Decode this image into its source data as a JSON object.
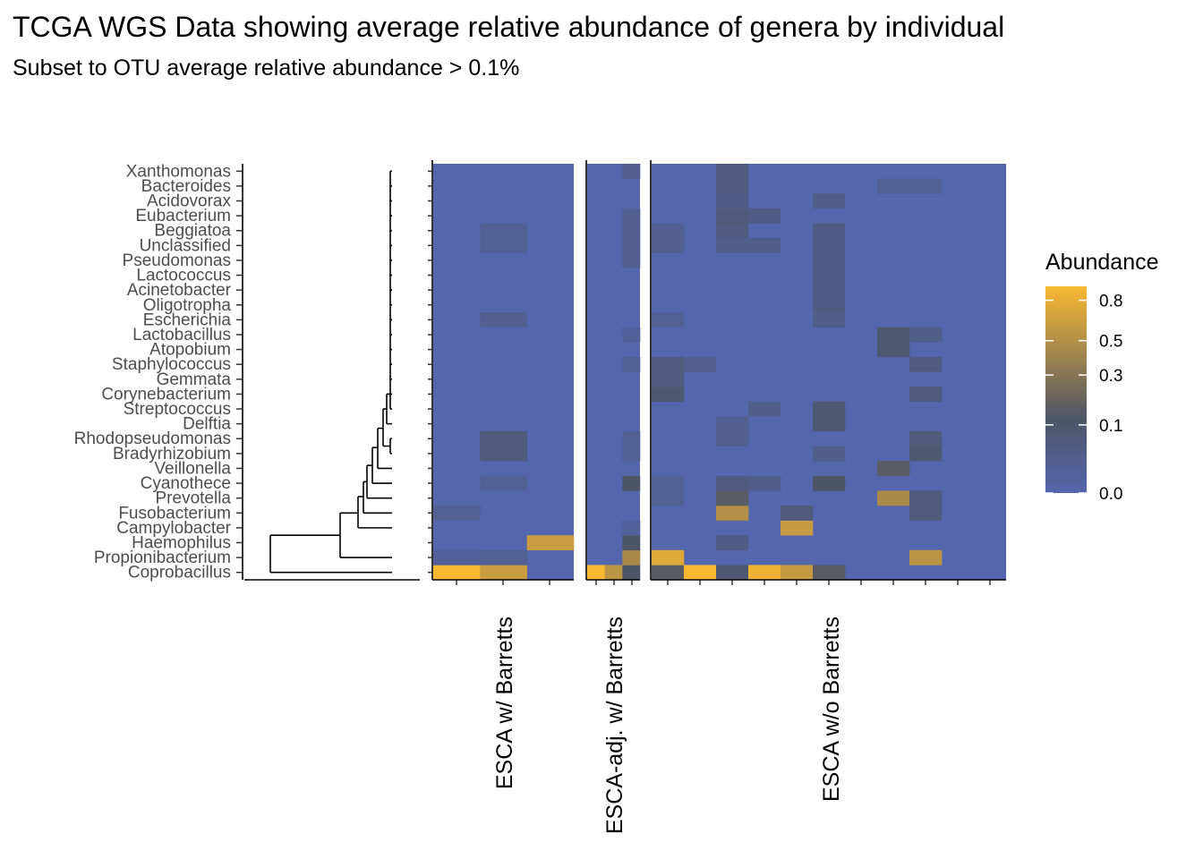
{
  "chart_data": {
    "type": "heatmap",
    "title": "TCGA WGS Data showing average relative abundance of genera by individual",
    "subtitle": "Subset to OTU average relative abundance > 0.1%",
    "genera": [
      "Xanthomonas",
      "Bacteroides",
      "Acidovorax",
      "Eubacterium",
      "Beggiatoa",
      "Unclassified",
      "Pseudomonas",
      "Lactococcus",
      "Acinetobacter",
      "Oligotropha",
      "Escherichia",
      "Lactobacillus",
      "Atopobium",
      "Staphylococcus",
      "Gemmata",
      "Corynebacterium",
      "Streptococcus",
      "Delftia",
      "Rhodopseudomonas",
      "Bradyrhizobium",
      "Veillonella",
      "Cyanothece",
      "Prevotella",
      "Fusobacterium",
      "Campylobacter",
      "Haemophilus",
      "Propionibacterium",
      "Coprobacillus"
    ],
    "facets": [
      {
        "label": "ESCA w/ Barretts",
        "n": 3,
        "cells": [
          {
            "genus": "Coprobacillus",
            "col": 0,
            "value": 0.92
          },
          {
            "genus": "Coprobacillus",
            "col": 1,
            "value": 0.62
          },
          {
            "genus": "Haemophilus",
            "col": 2,
            "value": 0.62
          },
          {
            "genus": "Bradyrhizobium",
            "col": 1,
            "value": 0.06
          },
          {
            "genus": "Rhodopseudomonas",
            "col": 1,
            "value": 0.06
          },
          {
            "genus": "Escherichia",
            "col": 1,
            "value": 0.02
          },
          {
            "genus": "Beggiatoa",
            "col": 1,
            "value": 0.015
          },
          {
            "genus": "Unclassified",
            "col": 1,
            "value": 0.015
          },
          {
            "genus": "Cyanothece",
            "col": 1,
            "value": 0.015
          },
          {
            "genus": "Propionibacterium",
            "col": 1,
            "value": 0.015
          },
          {
            "genus": "Fusobacterium",
            "col": 0,
            "value": 0.015
          },
          {
            "genus": "Propionibacterium",
            "col": 0,
            "value": 0.01
          }
        ]
      },
      {
        "label": "ESCA-adj. w/ Barretts",
        "n": 3,
        "cells": [
          {
            "genus": "Coprobacillus",
            "col": 0,
            "value": 0.92
          },
          {
            "genus": "Coprobacillus",
            "col": 1,
            "value": 0.55
          },
          {
            "genus": "Coprobacillus",
            "col": 2,
            "value": 0.12
          },
          {
            "genus": "Propionibacterium",
            "col": 2,
            "value": 0.45
          },
          {
            "genus": "Haemophilus",
            "col": 2,
            "value": 0.12
          },
          {
            "genus": "Cyanothece",
            "col": 2,
            "value": 0.12
          },
          {
            "genus": "Xanthomonas",
            "col": 2,
            "value": 0.02
          },
          {
            "genus": "Eubacterium",
            "col": 2,
            "value": 0.02
          },
          {
            "genus": "Beggiatoa",
            "col": 2,
            "value": 0.02
          },
          {
            "genus": "Unclassified",
            "col": 2,
            "value": 0.02
          },
          {
            "genus": "Pseudomonas",
            "col": 2,
            "value": 0.02
          },
          {
            "genus": "Staphylococcus",
            "col": 2,
            "value": 0.015
          },
          {
            "genus": "Rhodopseudomonas",
            "col": 2,
            "value": 0.015
          },
          {
            "genus": "Bradyrhizobium",
            "col": 2,
            "value": 0.015
          },
          {
            "genus": "Lactobacillus",
            "col": 2,
            "value": 0.01
          },
          {
            "genus": "Campylobacter",
            "col": 2,
            "value": 0.01
          }
        ]
      },
      {
        "label": "ESCA w/o Barretts",
        "n": 11,
        "cells": [
          {
            "genus": "Coprobacillus",
            "col": 0,
            "value": 0.15
          },
          {
            "genus": "Coprobacillus",
            "col": 1,
            "value": 0.92
          },
          {
            "genus": "Coprobacillus",
            "col": 2,
            "value": 0.08
          },
          {
            "genus": "Coprobacillus",
            "col": 3,
            "value": 0.85
          },
          {
            "genus": "Coprobacillus",
            "col": 4,
            "value": 0.6
          },
          {
            "genus": "Coprobacillus",
            "col": 5,
            "value": 0.15
          },
          {
            "genus": "Propionibacterium",
            "col": 0,
            "value": 0.75
          },
          {
            "genus": "Propionibacterium",
            "col": 8,
            "value": 0.55
          },
          {
            "genus": "Campylobacter",
            "col": 4,
            "value": 0.6
          },
          {
            "genus": "Fusobacterium",
            "col": 2,
            "value": 0.5
          },
          {
            "genus": "Fusobacterium",
            "col": 4,
            "value": 0.06
          },
          {
            "genus": "Prevotella",
            "col": 2,
            "value": 0.15
          },
          {
            "genus": "Prevotella",
            "col": 7,
            "value": 0.45
          },
          {
            "genus": "Prevotella",
            "col": 8,
            "value": 0.06
          },
          {
            "genus": "Veillonella",
            "col": 7,
            "value": 0.15
          },
          {
            "genus": "Cyanothece",
            "col": 5,
            "value": 0.12
          },
          {
            "genus": "Cyanothece",
            "col": 2,
            "value": 0.05
          },
          {
            "genus": "Cyanothece",
            "col": 3,
            "value": 0.03
          },
          {
            "genus": "Streptococcus",
            "col": 5,
            "value": 0.08
          },
          {
            "genus": "Delftia",
            "col": 5,
            "value": 0.08
          },
          {
            "genus": "Streptococcus",
            "col": 3,
            "value": 0.03
          },
          {
            "genus": "Corynebacterium",
            "col": 0,
            "value": 0.08
          },
          {
            "genus": "Staphylococcus",
            "col": 0,
            "value": 0.05
          },
          {
            "genus": "Gemmata",
            "col": 0,
            "value": 0.05
          },
          {
            "genus": "Staphylococcus",
            "col": 1,
            "value": 0.02
          },
          {
            "genus": "Lactobacillus",
            "col": 7,
            "value": 0.08
          },
          {
            "genus": "Atopobium",
            "col": 7,
            "value": 0.08
          },
          {
            "genus": "Lactobacillus",
            "col": 8,
            "value": 0.03
          },
          {
            "genus": "Staphylococcus",
            "col": 8,
            "value": 0.05
          },
          {
            "genus": "Corynebacterium",
            "col": 8,
            "value": 0.06
          },
          {
            "genus": "Rhodopseudomonas",
            "col": 8,
            "value": 0.06
          },
          {
            "genus": "Bradyrhizobium",
            "col": 8,
            "value": 0.08
          },
          {
            "genus": "Fusobacterium",
            "col": 8,
            "value": 0.06
          },
          {
            "genus": "Haemophilus",
            "col": 2,
            "value": 0.04
          },
          {
            "genus": "Bradyrhizobium",
            "col": 5,
            "value": 0.03
          },
          {
            "genus": "Xanthomonas",
            "col": 2,
            "value": 0.05
          },
          {
            "genus": "Bacteroides",
            "col": 2,
            "value": 0.05
          },
          {
            "genus": "Acidovorax",
            "col": 2,
            "value": 0.04
          },
          {
            "genus": "Eubacterium",
            "col": 2,
            "value": 0.06
          },
          {
            "genus": "Beggiatoa",
            "col": 2,
            "value": 0.05
          },
          {
            "genus": "Unclassified",
            "col": 2,
            "value": 0.03
          },
          {
            "genus": "Eubacterium",
            "col": 3,
            "value": 0.04
          },
          {
            "genus": "Unclassified",
            "col": 3,
            "value": 0.03
          },
          {
            "genus": "Acidovorax",
            "col": 5,
            "value": 0.03
          },
          {
            "genus": "Beggiatoa",
            "col": 5,
            "value": 0.04
          },
          {
            "genus": "Unclassified",
            "col": 5,
            "value": 0.04
          },
          {
            "genus": "Pseudomonas",
            "col": 5,
            "value": 0.04
          },
          {
            "genus": "Lactococcus",
            "col": 5,
            "value": 0.04
          },
          {
            "genus": "Acinetobacter",
            "col": 5,
            "value": 0.04
          },
          {
            "genus": "Oligotropha",
            "col": 5,
            "value": 0.04
          },
          {
            "genus": "Escherichia",
            "col": 5,
            "value": 0.03
          },
          {
            "genus": "Beggiatoa",
            "col": 0,
            "value": 0.02
          },
          {
            "genus": "Unclassified",
            "col": 0,
            "value": 0.02
          },
          {
            "genus": "Escherichia",
            "col": 0,
            "value": 0.015
          },
          {
            "genus": "Cyanothece",
            "col": 0,
            "value": 0.015
          },
          {
            "genus": "Prevotella",
            "col": 0,
            "value": 0.015
          },
          {
            "genus": "Delftia",
            "col": 2,
            "value": 0.02
          },
          {
            "genus": "Rhodopseudomonas",
            "col": 2,
            "value": 0.02
          },
          {
            "genus": "Bacteroides",
            "col": 7,
            "value": 0.015
          },
          {
            "genus": "Bacteroides",
            "col": 8,
            "value": 0.015
          }
        ]
      }
    ],
    "legend": {
      "title": "Abundance",
      "ticks": [
        "0.8",
        "0.5",
        "0.3",
        "0.1",
        "0.0"
      ],
      "tick_values": [
        0.8,
        0.5,
        0.3,
        0.1,
        0.0
      ],
      "range": [
        0,
        0.92
      ],
      "placement": "right"
    },
    "colors": {
      "low": "#5466ad",
      "mid": "#4e5566",
      "high": "#f9b832",
      "axis": "#000000",
      "label": "#4d4d4d"
    }
  }
}
